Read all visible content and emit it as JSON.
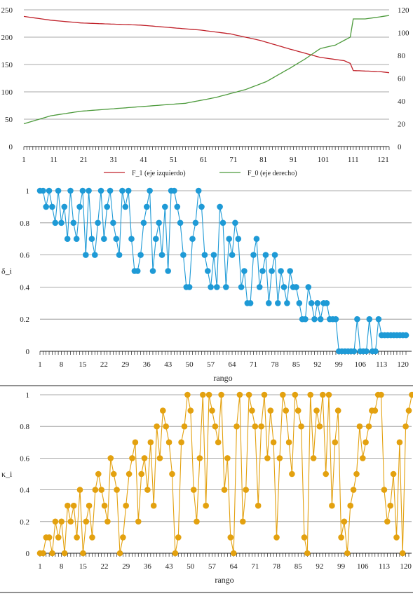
{
  "colors": {
    "f1": "#c0212a",
    "f0": "#4c9a3b",
    "delta": "#1e9ad6",
    "kappa": "#e3a10f",
    "grid": "#8c8c8c",
    "axis": "#222222"
  },
  "chart_data": [
    {
      "type": "line",
      "title": "",
      "xlabel": "",
      "ylabel": "",
      "y2label": "",
      "xlim": [
        1,
        123
      ],
      "ylim": [
        0,
        250
      ],
      "y2lim": [
        0,
        120
      ],
      "y_ticks": [
        0,
        50,
        100,
        150,
        200,
        250
      ],
      "y2_ticks": [
        0,
        20,
        40,
        60,
        80,
        100,
        120
      ],
      "x_tick_labels": [
        1,
        11,
        21,
        31,
        41,
        51,
        61,
        71,
        81,
        91,
        101,
        111,
        121
      ],
      "grid": true,
      "legend_position": "bottom",
      "series": [
        {
          "name": "F_1 (eje izquierdo)",
          "axis": "left",
          "anchors": [
            [
              1,
              238
            ],
            [
              10,
              231
            ],
            [
              20,
              226
            ],
            [
              40,
              222
            ],
            [
              60,
              213
            ],
            [
              70,
              206
            ],
            [
              80,
              194
            ],
            [
              90,
              178
            ],
            [
              100,
              163
            ],
            [
              108,
              157
            ],
            [
              110,
              152
            ],
            [
              111,
              139
            ],
            [
              120,
              137
            ],
            [
              123,
              135
            ]
          ]
        },
        {
          "name": "F_0 (eje derecho)",
          "axis": "right",
          "anchors": [
            [
              1,
              20
            ],
            [
              10,
              27
            ],
            [
              20,
              31
            ],
            [
              40,
              35
            ],
            [
              55,
              38
            ],
            [
              65,
              43
            ],
            [
              75,
              50
            ],
            [
              82,
              57
            ],
            [
              90,
              69
            ],
            [
              95,
              77
            ],
            [
              100,
              86
            ],
            [
              105,
              89
            ],
            [
              110,
              96
            ],
            [
              111,
              112
            ],
            [
              115,
              112
            ],
            [
              123,
              115
            ]
          ]
        }
      ]
    },
    {
      "type": "line",
      "title": "",
      "xlabel": "rango",
      "ylabel": "δ_i",
      "xlim": [
        1,
        121
      ],
      "ylim": [
        0,
        1
      ],
      "y_ticks": [
        0,
        0.2,
        0.4,
        0.6,
        0.8,
        1
      ],
      "x_tick_labels": [
        1,
        8,
        15,
        22,
        29,
        36,
        43,
        50,
        57,
        64,
        71,
        78,
        85,
        92,
        99,
        106,
        113,
        120
      ],
      "grid": true,
      "series": [
        {
          "name": "",
          "values": [
            1,
            1,
            0.9,
            1,
            0.9,
            0.8,
            1,
            0.8,
            0.9,
            0.7,
            1,
            0.8,
            0.7,
            0.9,
            1,
            0.6,
            1,
            0.7,
            0.6,
            0.8,
            1,
            0.7,
            0.9,
            1,
            0.8,
            0.7,
            0.6,
            1,
            0.9,
            1,
            0.7,
            0.5,
            0.5,
            0.6,
            0.8,
            0.9,
            1,
            0.5,
            0.7,
            0.8,
            0.6,
            0.9,
            0.5,
            1,
            1,
            0.9,
            0.8,
            0.6,
            0.4,
            0.4,
            0.7,
            0.8,
            1,
            0.9,
            0.6,
            0.5,
            0.4,
            0.6,
            0.4,
            0.9,
            0.8,
            0.4,
            0.7,
            0.6,
            0.8,
            0.7,
            0.4,
            0.5,
            0.3,
            0.3,
            0.6,
            0.7,
            0.4,
            0.5,
            0.6,
            0.3,
            0.5,
            0.6,
            0.3,
            0.5,
            0.4,
            0.3,
            0.5,
            0.4,
            0.4,
            0.3,
            0.2,
            0.2,
            0.4,
            0.3,
            0.2,
            0.3,
            0.2,
            0.3,
            0.3,
            0.2,
            0.2,
            0.2,
            0.0,
            0.0,
            0.0,
            0.0,
            0.0,
            0.0,
            0.2,
            0.0,
            0.0,
            0.0,
            0.2,
            0.0,
            0.0,
            0.2,
            0.1,
            0.1,
            0.1,
            0.1,
            0.1,
            0.1,
            0.1,
            0.1,
            0.1
          ]
        }
      ]
    },
    {
      "type": "line",
      "title": "",
      "xlabel": "rango",
      "ylabel": "κ_i",
      "xlim": [
        1,
        121
      ],
      "ylim": [
        0,
        1
      ],
      "y_ticks": [
        0,
        0.2,
        0.4,
        0.6,
        0.8,
        1
      ],
      "x_tick_labels": [
        1,
        8,
        15,
        22,
        29,
        36,
        43,
        50,
        57,
        64,
        71,
        78,
        85,
        92,
        99,
        106,
        113,
        120
      ],
      "grid": true,
      "series": [
        {
          "name": "",
          "values": [
            0,
            0,
            0.1,
            0.1,
            0,
            0.2,
            0.1,
            0.2,
            0,
            0.3,
            0.2,
            0.3,
            0.1,
            0.4,
            0,
            0.2,
            0.3,
            0.1,
            0.4,
            0.5,
            0.4,
            0.3,
            0.2,
            0.6,
            0.5,
            0.4,
            0,
            0.1,
            0.3,
            0.5,
            0.6,
            0.7,
            0.2,
            0.5,
            0.6,
            0.4,
            0.7,
            0.3,
            0.8,
            0.6,
            0.9,
            0.8,
            0.7,
            0.5,
            0,
            0.1,
            0.7,
            0.8,
            1,
            0.9,
            0.4,
            0.2,
            0.6,
            1,
            0.3,
            1,
            0.9,
            0.8,
            0.7,
            1,
            0.4,
            0.6,
            0.1,
            0,
            0.8,
            1,
            0.2,
            0.4,
            1,
            0.9,
            0.8,
            0.3,
            0.8,
            1,
            0.6,
            0.9,
            0.7,
            0.1,
            0.6,
            1,
            0.9,
            0.7,
            0.5,
            1,
            0.9,
            0.8,
            0.1,
            0,
            1,
            0.6,
            0.9,
            0.8,
            1,
            0.5,
            1,
            0.3,
            0.7,
            0.9,
            0.1,
            0.2,
            0,
            0.3,
            0.4,
            0.5,
            0.8,
            0.6,
            0.7,
            0.8,
            0.9,
            0.9,
            1,
            1,
            0.4,
            0.2,
            0.3,
            0.5,
            0.1,
            0.7,
            0,
            0.8,
            0.9,
            1
          ]
        }
      ]
    }
  ]
}
